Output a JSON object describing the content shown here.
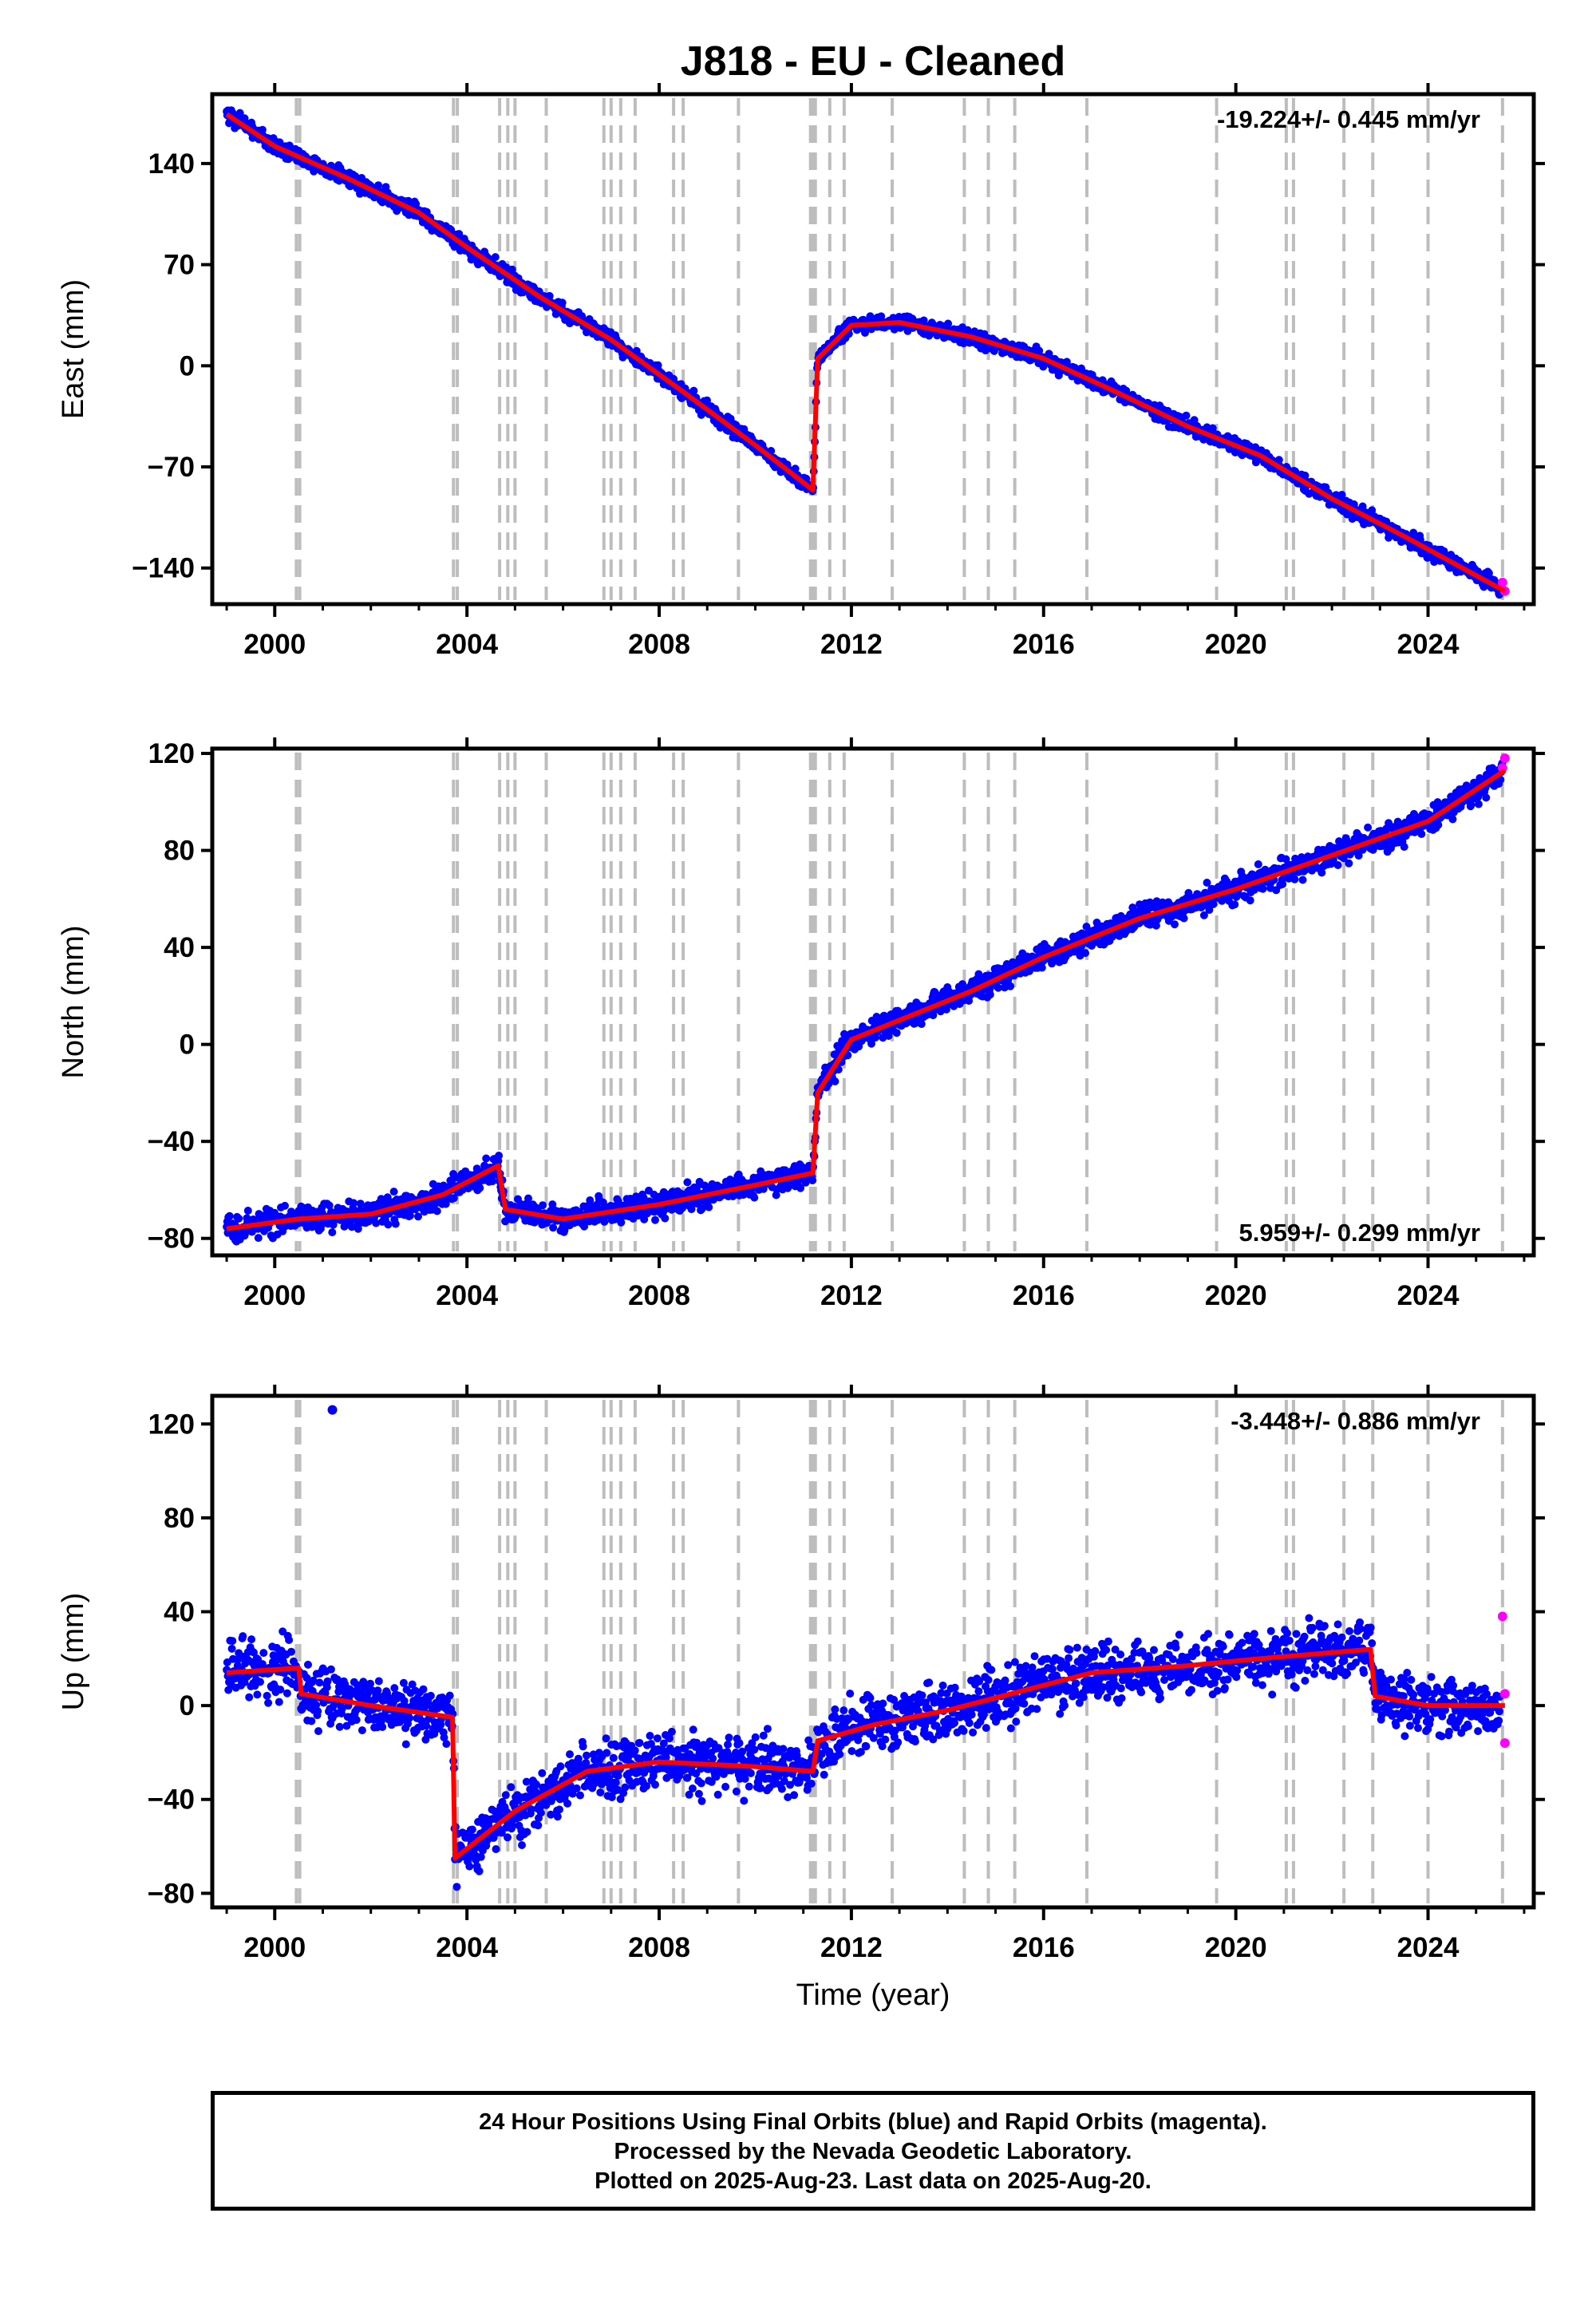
{
  "title": "J818  - EU - Cleaned",
  "colors": {
    "final_orbits": "#0000ff",
    "rapid_orbits": "#ff00ff",
    "model": "#ff0000",
    "event_lines": "#bdbdbd",
    "frame": "#000000"
  },
  "x_axis": {
    "label": "Time (year)",
    "range": [
      1998.7,
      2026.2
    ],
    "ticks": [
      "2000",
      "2004",
      "2008",
      "2012",
      "2016",
      "2020",
      "2024"
    ]
  },
  "event_lines": [
    2000.45,
    2000.52,
    2003.72,
    2003.8,
    2004.68,
    2004.85,
    2005.0,
    2005.65,
    2006.85,
    2007.0,
    2007.2,
    2007.5,
    2008.3,
    2008.5,
    2009.65,
    2011.15,
    2011.2,
    2011.25,
    2011.55,
    2011.85,
    2012.85,
    2014.35,
    2014.85,
    2015.4,
    2016.9,
    2019.6,
    2021.05,
    2021.2,
    2022.25,
    2022.85,
    2024.0,
    2025.55
  ],
  "panels": [
    {
      "component": "east",
      "ylabel": "East (mm)",
      "ylim": [
        -165,
        188
      ],
      "yticks": [
        "140",
        "70",
        "0",
        "−70",
        "−140"
      ],
      "ytick_values": [
        140,
        70,
        0,
        -70,
        -140
      ],
      "rate_text": "-19.224+/- 0.445 mm/yr",
      "rate_position": "top-right"
    },
    {
      "component": "north",
      "ylabel": "North (mm)",
      "ylim": [
        -87,
        122
      ],
      "yticks": [
        "120",
        "80",
        "40",
        "0",
        "−40",
        "−80"
      ],
      "ytick_values": [
        120,
        80,
        40,
        0,
        -40,
        -80
      ],
      "rate_text": "5.959+/- 0.299 mm/yr",
      "rate_position": "bottom-right"
    },
    {
      "component": "up",
      "ylabel": "Up (mm)",
      "ylim": [
        -86,
        132
      ],
      "yticks": [
        "120",
        "80",
        "40",
        "0",
        "−40",
        "−80"
      ],
      "ytick_values": [
        120,
        80,
        40,
        0,
        -40,
        -80
      ],
      "rate_text": "-3.448+/- 0.886 mm/yr",
      "rate_position": "top-right"
    }
  ],
  "chart_data": [
    {
      "type": "scatter",
      "title": "J818  - EU - Cleaned",
      "ylabel": "East (mm)",
      "xlabel": "",
      "ylim": [
        -165,
        188
      ],
      "series": [
        {
          "name": "Final Orbits",
          "color": "#0000ff",
          "x": [
            1999.0,
            2000.0,
            2001.5,
            2003.0,
            2004.0,
            2005.5,
            2007.0,
            2008.5,
            2010.0,
            2011.2,
            2011.3,
            2012.0,
            2013.0,
            2014.5,
            2016.0,
            2017.5,
            2019.0,
            2020.5,
            2022.0,
            2023.5,
            2025.5
          ],
          "y": [
            175,
            152,
            130,
            106,
            82,
            48,
            18,
            -18,
            -55,
            -86,
            5,
            28,
            30,
            20,
            5,
            -18,
            -42,
            -62,
            -92,
            -118,
            -153
          ]
        },
        {
          "name": "Rapid Orbits",
          "color": "#ff00ff",
          "x": [
            2025.55,
            2025.6
          ],
          "y": [
            -150,
            -156
          ]
        },
        {
          "name": "Model",
          "color": "#ff0000",
          "x": [
            1999.0,
            2000.0,
            2001.5,
            2003.0,
            2004.0,
            2005.5,
            2007.0,
            2008.5,
            2010.0,
            2011.2,
            2011.3,
            2012.0,
            2013.0,
            2014.5,
            2016.0,
            2017.5,
            2019.0,
            2020.5,
            2022.0,
            2023.5,
            2025.6
          ],
          "y": [
            174,
            152,
            130,
            106,
            82,
            48,
            18,
            -18,
            -55,
            -86,
            5,
            28,
            30,
            20,
            5,
            -18,
            -42,
            -62,
            -92,
            -118,
            -156
          ]
        }
      ]
    },
    {
      "type": "scatter",
      "ylabel": "North (mm)",
      "xlabel": "",
      "ylim": [
        -87,
        122
      ],
      "series": [
        {
          "name": "Final Orbits",
          "color": "#0000ff",
          "x": [
            1999.0,
            2000.5,
            2002.0,
            2003.5,
            2004.65,
            2004.8,
            2006.0,
            2008.0,
            2010.0,
            2011.2,
            2011.3,
            2012.0,
            2013.0,
            2014.5,
            2016.0,
            2018.0,
            2020.0,
            2022.0,
            2024.0,
            2025.55
          ],
          "y": [
            -76,
            -72,
            -70,
            -62,
            -50,
            -68,
            -72,
            -66,
            -58,
            -53,
            -20,
            2,
            10,
            22,
            36,
            52,
            64,
            78,
            92,
            112
          ]
        },
        {
          "name": "Rapid Orbits",
          "color": "#ff00ff",
          "x": [
            2025.55,
            2025.6
          ],
          "y": [
            114,
            118
          ]
        },
        {
          "name": "Model",
          "color": "#ff0000",
          "x": [
            1999.0,
            2000.5,
            2002.0,
            2003.5,
            2004.65,
            2004.8,
            2006.0,
            2008.0,
            2010.0,
            2011.2,
            2011.3,
            2012.0,
            2013.0,
            2014.5,
            2016.0,
            2018.0,
            2020.0,
            2022.0,
            2024.0,
            2025.6
          ],
          "y": [
            -76,
            -72,
            -70,
            -62,
            -50,
            -68,
            -72,
            -66,
            -58,
            -53,
            -20,
            2,
            10,
            22,
            36,
            52,
            64,
            78,
            92,
            113
          ]
        }
      ]
    },
    {
      "type": "scatter",
      "ylabel": "Up (mm)",
      "xlabel": "Time (year)",
      "ylim": [
        -86,
        132
      ],
      "series": [
        {
          "name": "Final Orbits",
          "color": "#0000ff",
          "x": [
            1999.0,
            2000.5,
            2000.55,
            2002.0,
            2003.7,
            2003.75,
            2005.0,
            2006.5,
            2008.0,
            2010.0,
            2011.2,
            2011.3,
            2012.5,
            2014.0,
            2015.5,
            2017.0,
            2019.0,
            2020.5,
            2022.8,
            2022.9,
            2024.0,
            2025.5
          ],
          "y": [
            14,
            16,
            5,
            0,
            -5,
            -65,
            -45,
            -28,
            -24,
            -26,
            -28,
            -15,
            -8,
            -2,
            6,
            14,
            17,
            20,
            24,
            4,
            0,
            -2
          ]
        },
        {
          "name": "Outlier",
          "color": "#0000ff",
          "x": [
            2001.2
          ],
          "y": [
            126
          ]
        },
        {
          "name": "Rapid Orbits",
          "color": "#ff00ff",
          "x": [
            2025.55,
            2025.6,
            2025.6
          ],
          "y": [
            38,
            5,
            -16
          ]
        },
        {
          "name": "Model",
          "color": "#ff0000",
          "x": [
            1999.0,
            2000.5,
            2000.55,
            2002.0,
            2003.7,
            2003.75,
            2005.0,
            2006.5,
            2008.0,
            2010.0,
            2011.2,
            2011.3,
            2012.5,
            2014.0,
            2015.5,
            2017.0,
            2019.0,
            2020.5,
            2022.8,
            2022.9,
            2024.0,
            2025.6
          ],
          "y": [
            14,
            16,
            5,
            0,
            -5,
            -65,
            -45,
            -28,
            -24,
            -26,
            -28,
            -15,
            -8,
            -2,
            6,
            14,
            17,
            20,
            24,
            4,
            0,
            0
          ]
        }
      ]
    }
  ],
  "caption": {
    "line1": "24 Hour Positions Using Final Orbits (blue) and Rapid Orbits (magenta).",
    "line2": "Processed by the Nevada Geodetic Laboratory.",
    "line3": "Plotted on 2025-Aug-23. Last data on 2025-Aug-20."
  }
}
